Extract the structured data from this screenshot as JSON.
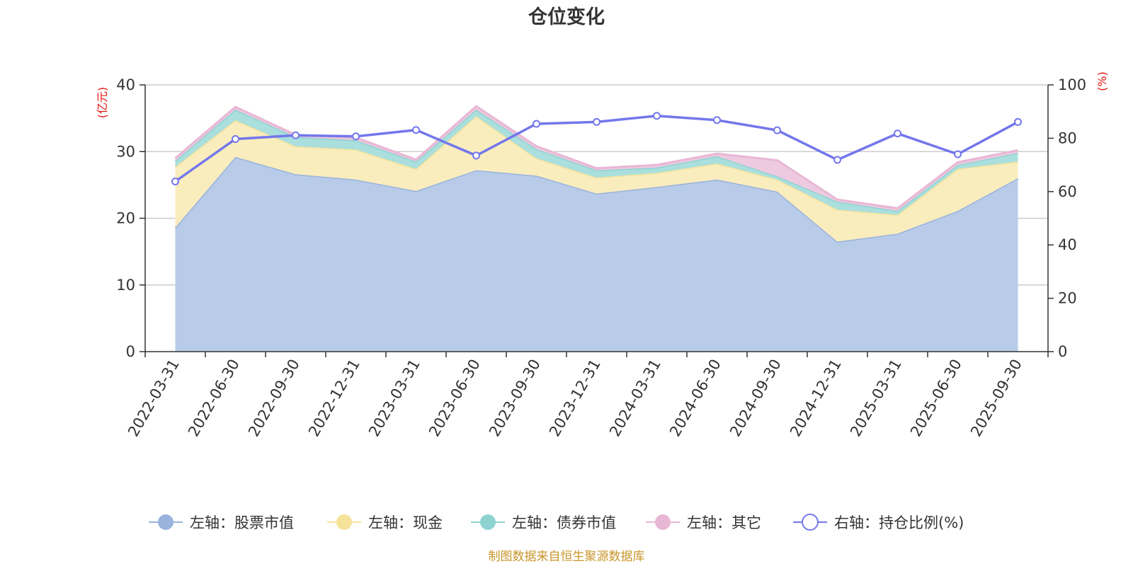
{
  "chart_data": {
    "type": "area",
    "title": "仓位变化",
    "left_unit": "(亿元)",
    "right_unit": "(%)",
    "categories": [
      "2022-03-31",
      "2022-06-30",
      "2022-09-30",
      "2022-12-31",
      "2023-03-31",
      "2023-06-30",
      "2023-09-30",
      "2023-12-31",
      "2024-03-31",
      "2024-06-30",
      "2024-09-30",
      "2024-12-31",
      "2025-03-31",
      "2025-06-30",
      "2025-09-30"
    ],
    "left_axis": {
      "min": 0,
      "max": 40,
      "ticks": [
        "0",
        "10",
        "20",
        "30",
        "40"
      ]
    },
    "right_axis": {
      "min": 0,
      "max": 100,
      "ticks": [
        "0",
        "20",
        "40",
        "60",
        "80",
        "100"
      ]
    },
    "stacked_series": [
      {
        "name": "左轴：股票市值",
        "fill": "#b8cbe9",
        "stroke": "#9ab3dd",
        "values": [
          18.6,
          29.2,
          26.6,
          25.8,
          24.1,
          27.2,
          26.4,
          23.7,
          24.7,
          25.8,
          24.0,
          16.5,
          17.7,
          21.1,
          26.0
        ]
      },
      {
        "name": "左轴：现金",
        "fill": "#f9edbe",
        "stroke": "#f6e39a",
        "values": [
          9.1,
          5.5,
          4.2,
          4.5,
          3.3,
          8.1,
          2.6,
          2.4,
          2.1,
          2.4,
          1.8,
          4.8,
          2.8,
          6.3,
          2.5
        ]
      },
      {
        "name": "左轴：债券市值",
        "fill": "#aadfdd",
        "stroke": "#8fd3d1",
        "values": [
          0.9,
          1.6,
          1.4,
          1.4,
          1.1,
          1.0,
          1.4,
          1.1,
          0.8,
          1.1,
          0.5,
          1.2,
          0.6,
          0.6,
          1.3
        ]
      },
      {
        "name": "左轴：其它",
        "fill": "#eecae0",
        "stroke": "#e8b7d5",
        "values": [
          0.4,
          0.4,
          0.3,
          0.4,
          0.3,
          0.5,
          0.4,
          0.3,
          0.4,
          0.4,
          2.4,
          0.3,
          0.4,
          0.4,
          0.4
        ]
      }
    ],
    "line_series": {
      "name": "右轴：持仓比例(%)",
      "color": "#7377eb",
      "values": [
        63.8,
        79.7,
        81.1,
        80.7,
        83.1,
        73.5,
        85.4,
        86.1,
        88.4,
        86.8,
        83.0,
        71.9,
        81.8,
        74.0,
        86.1
      ]
    }
  },
  "source_note": "制图数据来自恒生聚源数据库"
}
